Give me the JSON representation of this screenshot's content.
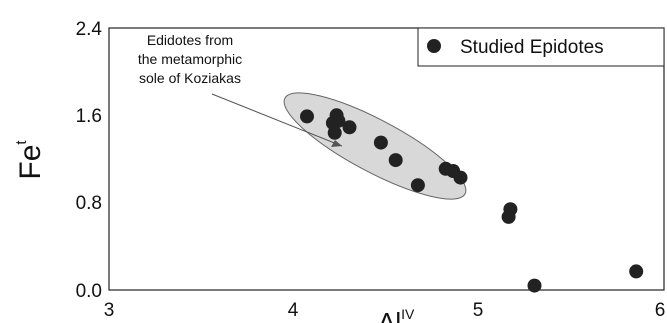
{
  "chart_data": {
    "type": "scatter",
    "xlim": [
      3,
      6
    ],
    "ylim": [
      0,
      2.4
    ],
    "x_ticks": [
      "3",
      "4",
      "5",
      "6"
    ],
    "y_ticks": [
      "0.0",
      "0.8",
      "1.6",
      "2.4"
    ],
    "xlabel_base": "Al",
    "xlabel_sup": "IV",
    "ylabel_base": "Fe",
    "ylabel_sup": "t",
    "grid": false,
    "legend_position": "top-right",
    "series": [
      {
        "name": "Studied Epidotes",
        "color": "#222222",
        "points": [
          {
            "x": 4.07,
            "y": 1.59
          },
          {
            "x": 4.21,
            "y": 1.53
          },
          {
            "x": 4.23,
            "y": 1.6
          },
          {
            "x": 4.24,
            "y": 1.55
          },
          {
            "x": 4.22,
            "y": 1.44
          },
          {
            "x": 4.3,
            "y": 1.49
          },
          {
            "x": 4.47,
            "y": 1.35
          },
          {
            "x": 4.55,
            "y": 1.19
          },
          {
            "x": 4.67,
            "y": 0.96
          },
          {
            "x": 4.82,
            "y": 1.11
          },
          {
            "x": 4.86,
            "y": 1.09
          },
          {
            "x": 4.9,
            "y": 1.03
          },
          {
            "x": 5.16,
            "y": 0.67
          },
          {
            "x": 5.17,
            "y": 0.74
          },
          {
            "x": 5.3,
            "y": 0.04
          },
          {
            "x": 5.85,
            "y": 0.17
          }
        ]
      }
    ],
    "annotation": {
      "lines": [
        "Edidotes from",
        "the metamorphic",
        "sole of Koziakas"
      ]
    }
  }
}
